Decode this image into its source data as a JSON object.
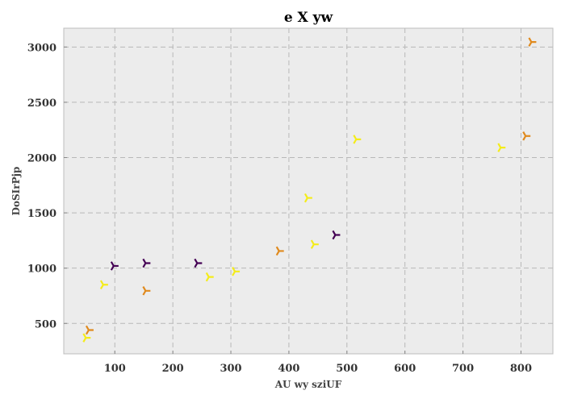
{
  "chart_data": {
    "type": "scatter",
    "title": "e X yw",
    "xlabel": "AU wy sziUF",
    "ylabel": "DoSIrPjp",
    "xlim": [
      12,
      855
    ],
    "ylim": [
      225,
      3170
    ],
    "xticks": [
      100,
      200,
      300,
      400,
      500,
      600,
      700,
      800
    ],
    "yticks": [
      500,
      1000,
      1500,
      2000,
      2500,
      3000
    ],
    "grid": true,
    "marker": "tri_right",
    "colors": {
      "purple": "#440154",
      "orange": "#e08a1e",
      "yellow": "#f4ec1a"
    },
    "points": [
      {
        "x": 98,
        "y": 1020,
        "color": "purple"
      },
      {
        "x": 153,
        "y": 1045,
        "color": "purple"
      },
      {
        "x": 242,
        "y": 1045,
        "color": "purple"
      },
      {
        "x": 480,
        "y": 1300,
        "color": "purple"
      },
      {
        "x": 55,
        "y": 440,
        "color": "orange"
      },
      {
        "x": 153,
        "y": 795,
        "color": "orange"
      },
      {
        "x": 383,
        "y": 1155,
        "color": "orange"
      },
      {
        "x": 808,
        "y": 2195,
        "color": "orange"
      },
      {
        "x": 818,
        "y": 3045,
        "color": "orange"
      },
      {
        "x": 50,
        "y": 370,
        "color": "yellow"
      },
      {
        "x": 80,
        "y": 850,
        "color": "yellow"
      },
      {
        "x": 262,
        "y": 920,
        "color": "yellow"
      },
      {
        "x": 307,
        "y": 970,
        "color": "yellow"
      },
      {
        "x": 432,
        "y": 1635,
        "color": "yellow"
      },
      {
        "x": 443,
        "y": 1215,
        "color": "yellow"
      },
      {
        "x": 516,
        "y": 2165,
        "color": "yellow"
      },
      {
        "x": 765,
        "y": 2090,
        "color": "yellow"
      }
    ]
  }
}
